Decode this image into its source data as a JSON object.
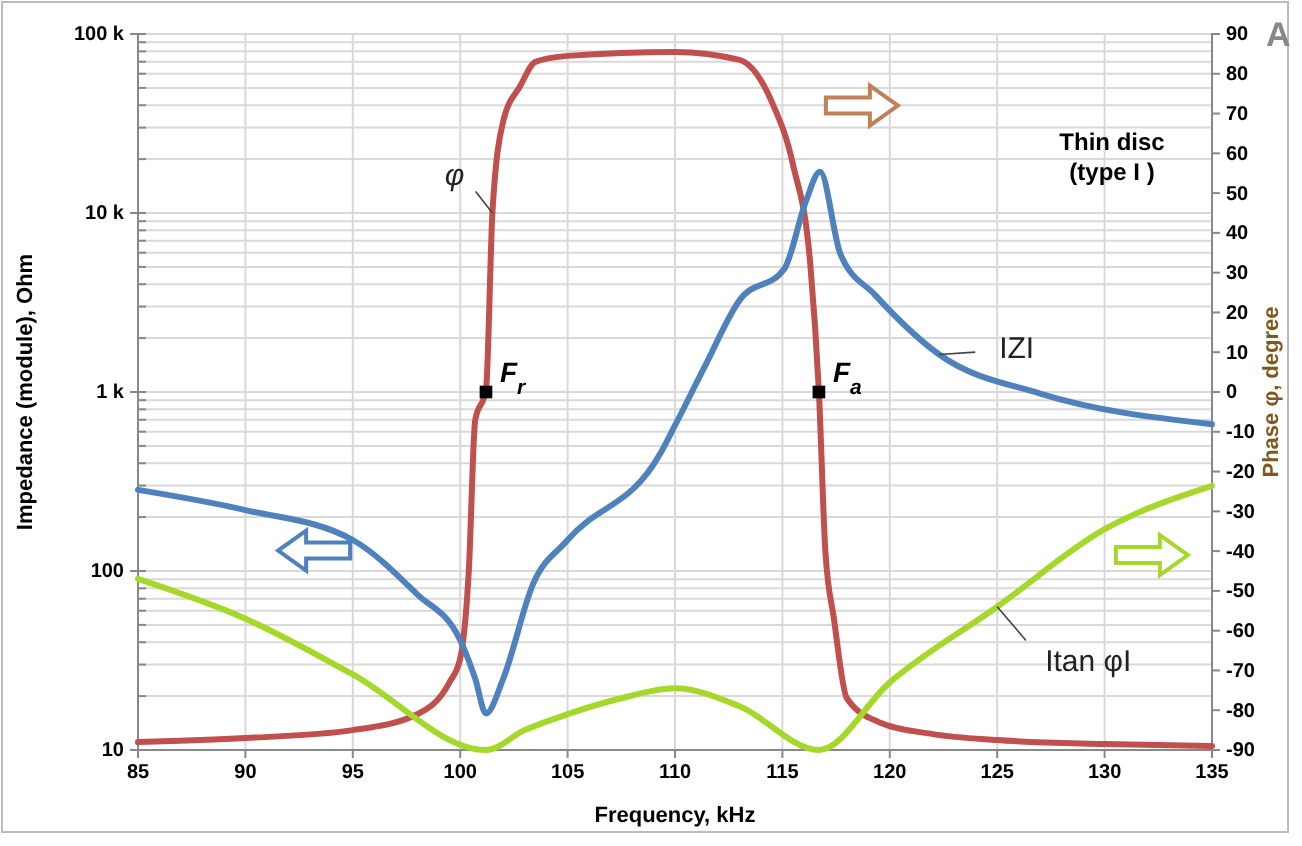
{
  "chart_data": {
    "type": "line",
    "xlabel": "Frequency, kHz",
    "ylabel": "Impedance (module), Ohm",
    "y2label": "Phase φ, degree",
    "xlim": [
      85,
      135
    ],
    "xticks": [
      85,
      90,
      95,
      100,
      105,
      110,
      115,
      120,
      125,
      130,
      135
    ],
    "log": "y",
    "ylim": [
      10,
      100000
    ],
    "yticks": [
      {
        "value": 10,
        "label": "10"
      },
      {
        "value": 100,
        "label": "100"
      },
      {
        "value": 1000,
        "label": "1 k"
      },
      {
        "value": 10000,
        "label": "10 k"
      },
      {
        "value": 100000,
        "label": "100 k"
      }
    ],
    "y2lim": [
      -90,
      90
    ],
    "y2ticks": [
      -90,
      -80,
      -70,
      -60,
      -50,
      -40,
      -30,
      -20,
      -10,
      0,
      10,
      20,
      30,
      40,
      50,
      60,
      70,
      80,
      90
    ],
    "grid": true,
    "series": [
      {
        "name": "φ",
        "color": "#c0504d",
        "axis": "y2",
        "x": [
          85,
          90,
          95,
          98,
          99.5,
          100,
          100.4,
          100.7,
          101.2,
          101.5,
          102,
          102.8,
          103.5,
          105,
          110,
          113,
          114.5,
          115.5,
          116.3,
          116.7,
          117,
          117.4,
          118,
          119.5,
          122,
          125,
          130,
          135
        ],
        "values": [
          -88,
          -87,
          -85,
          -81,
          -73,
          -67,
          -45,
          -7,
          0.5,
          45,
          68,
          77,
          83,
          84.5,
          85.5,
          83.5,
          73,
          57,
          32,
          0,
          -40,
          -57,
          -77,
          -83,
          -86,
          -87.5,
          -88.5,
          -89
        ]
      },
      {
        "name": "IZI",
        "color": "#4f81bd",
        "x": [
          85,
          90,
          95,
          98,
          100,
          100.7,
          101.2,
          102,
          103.4,
          105,
          109.3,
          110,
          111.4,
          113,
          115.1,
          116.1,
          116.75,
          117.7,
          119.3,
          122.3,
          127,
          135
        ],
        "values": [
          284,
          219,
          149,
          74,
          41,
          25,
          16,
          25,
          85,
          149,
          450,
          650,
          1400,
          3250,
          4900,
          11700,
          17000,
          5900,
          3500,
          1620,
          980,
          660
        ]
      },
      {
        "name": "Itan φI",
        "color": "#a5d82b",
        "axis": "y2",
        "x": [
          85,
          90,
          95,
          101.2,
          103,
          105,
          107.5,
          110,
          113,
          116.7,
          120,
          125,
          130,
          135
        ],
        "values": [
          -47,
          -57,
          -71,
          -90,
          -85,
          -81,
          -77,
          -74.5,
          -79,
          -90,
          -73,
          -54,
          -34.5,
          -23.6
        ]
      },
      {
        "type": "scatter",
        "color": "#000000",
        "axis": "y2",
        "marker": "square",
        "x": [
          101.2,
          116.7
        ],
        "values": [
          0,
          0
        ]
      }
    ],
    "annotations": [
      {
        "text": "F$_{r}$",
        "x": 101.2,
        "y": 1000
      },
      {
        "text": "F$_{a}$",
        "x": 116.7,
        "y": 1000
      },
      "Thin disc",
      "(type I )",
      "A"
    ]
  }
}
